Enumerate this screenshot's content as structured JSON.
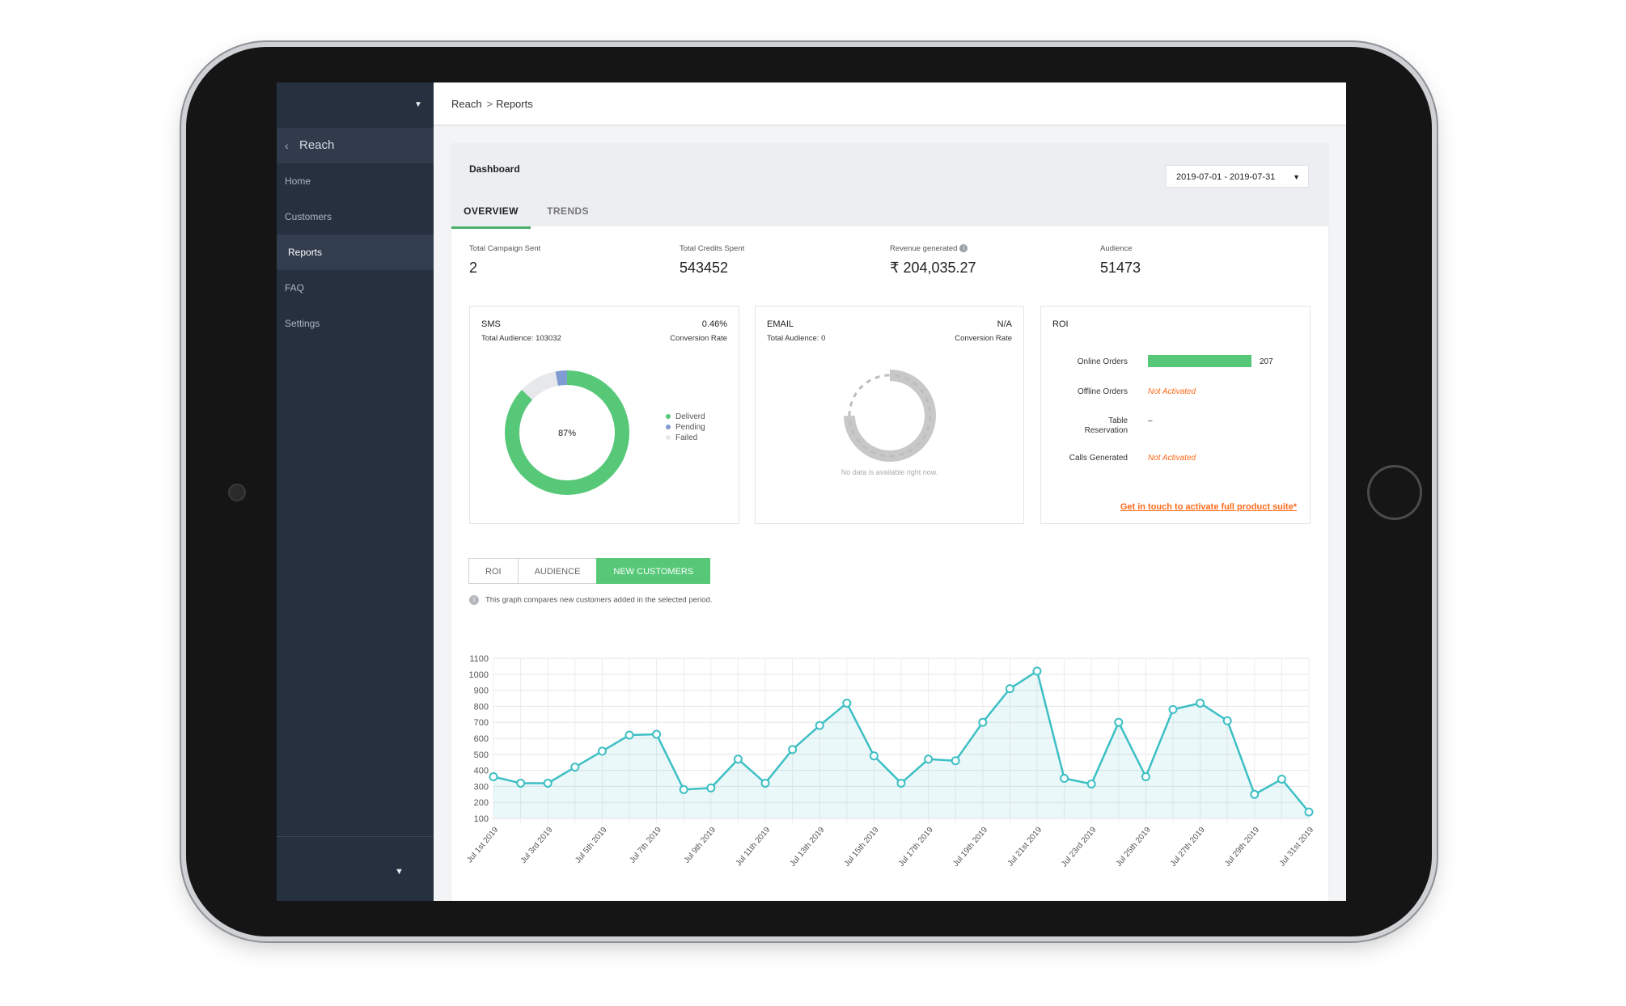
{
  "sidebar": {
    "back_label": "Reach",
    "items": [
      {
        "label": "Home"
      },
      {
        "label": "Customers"
      },
      {
        "label": "Reports"
      },
      {
        "label": "FAQ"
      },
      {
        "label": "Settings"
      }
    ]
  },
  "breadcrumb": {
    "root": "Reach",
    "separator": ">",
    "current": "Reports"
  },
  "dashboard": {
    "title": "Dashboard",
    "date_range": "2019-07-01 - 2019-07-31",
    "tabs": [
      {
        "label": "OVERVIEW",
        "active": true
      },
      {
        "label": "TRENDS",
        "active": false
      }
    ]
  },
  "stats": [
    {
      "label": "Total Campaign Sent",
      "value": "2"
    },
    {
      "label": "Total Credits Spent",
      "value": "543452"
    },
    {
      "label": "Revenue generated",
      "value": "₹ 204,035.27"
    },
    {
      "label": "Audience",
      "value": "51473"
    }
  ],
  "sms_panel": {
    "title": "SMS",
    "sub": "Total Audience: 103032",
    "rate": "0.46%",
    "rate_label": "Conversion Rate",
    "center_label": "87%",
    "legend": [
      {
        "label": "Deliverd",
        "color": "#56c878",
        "share": 0.87
      },
      {
        "label": "Pending",
        "color": "#7f9bd1",
        "share": 0.03
      },
      {
        "label": "Failed",
        "color": "#e6e8eb",
        "share": 0.1
      }
    ]
  },
  "email_panel": {
    "title": "EMAIL",
    "sub": "Total Audience: 0",
    "rate": "N/A",
    "rate_label": "Conversion Rate",
    "nodata": "No data is available right now."
  },
  "roi_panel": {
    "title": "ROI",
    "rows": [
      {
        "label": "Online Orders",
        "value": "207",
        "bar_fraction": 1.0
      },
      {
        "label": "Offline Orders",
        "value": "Not Activated"
      },
      {
        "label": "Table\nReservation",
        "value": "–"
      },
      {
        "label": "Calls Generated",
        "value": "Not Activated"
      }
    ],
    "link": "Get in touch to activate full product suite*"
  },
  "graph_tabs": [
    {
      "label": "ROI",
      "active": false
    },
    {
      "label": "AUDIENCE",
      "active": false
    },
    {
      "label": "NEW CUSTOMERS",
      "active": true
    }
  ],
  "hint": "This graph compares new customers added in the selected period.",
  "colors": {
    "accent": "#56c878",
    "line": "#3dbfc4",
    "sidebar": "#27303f",
    "warning": "#ff6a1a"
  },
  "chart_data": {
    "type": "area",
    "x": [
      "Jul 1st 2019",
      "Jul 2nd 2019",
      "Jul 3rd 2019",
      "Jul 4th 2019",
      "Jul 5th 2019",
      "Jul 6th 2019",
      "Jul 7th 2019",
      "Jul 8th 2019",
      "Jul 9th 2019",
      "Jul 10th 2019",
      "Jul 11th 2019",
      "Jul 12th 2019",
      "Jul 13th 2019",
      "Jul 14th 2019",
      "Jul 15th 2019",
      "Jul 16th 2019",
      "Jul 17th 2019",
      "Jul 18th 2019",
      "Jul 19th 2019",
      "Jul 20th 2019",
      "Jul 21st 2019",
      "Jul 22nd 2019",
      "Jul 23rd 2019",
      "Jul 24th 2019",
      "Jul 25th 2019",
      "Jul 26th 2019",
      "Jul 27th 2019",
      "Jul 28th 2019",
      "Jul 29th 2019",
      "Jul 30th 2019",
      "Jul 31st 2019"
    ],
    "tick_labels": [
      "Jul 1st 2019",
      "Jul 3rd 2019",
      "Jul 5th 2019",
      "Jul 7th 2019",
      "Jul 9th 2019",
      "Jul 11th 2019",
      "Jul 13th 2019",
      "Jul 15th 2019",
      "Jul 17th 2019",
      "Jul 19th 2019",
      "Jul 21st 2019",
      "Jul 23rd 2019",
      "Jul 25th 2019",
      "Jul 27th 2019",
      "Jul 29th 2019",
      "Jul 31st 2019"
    ],
    "values": [
      360,
      320,
      320,
      420,
      520,
      620,
      625,
      280,
      290,
      470,
      320,
      530,
      680,
      820,
      490,
      320,
      470,
      460,
      700,
      910,
      1020,
      350,
      315,
      700,
      360,
      780,
      820,
      710,
      250,
      345,
      140
    ],
    "yticks": [
      100,
      200,
      300,
      400,
      500,
      600,
      700,
      800,
      900,
      1000,
      1100
    ],
    "ylim": [
      100,
      1100
    ],
    "grid": true
  }
}
